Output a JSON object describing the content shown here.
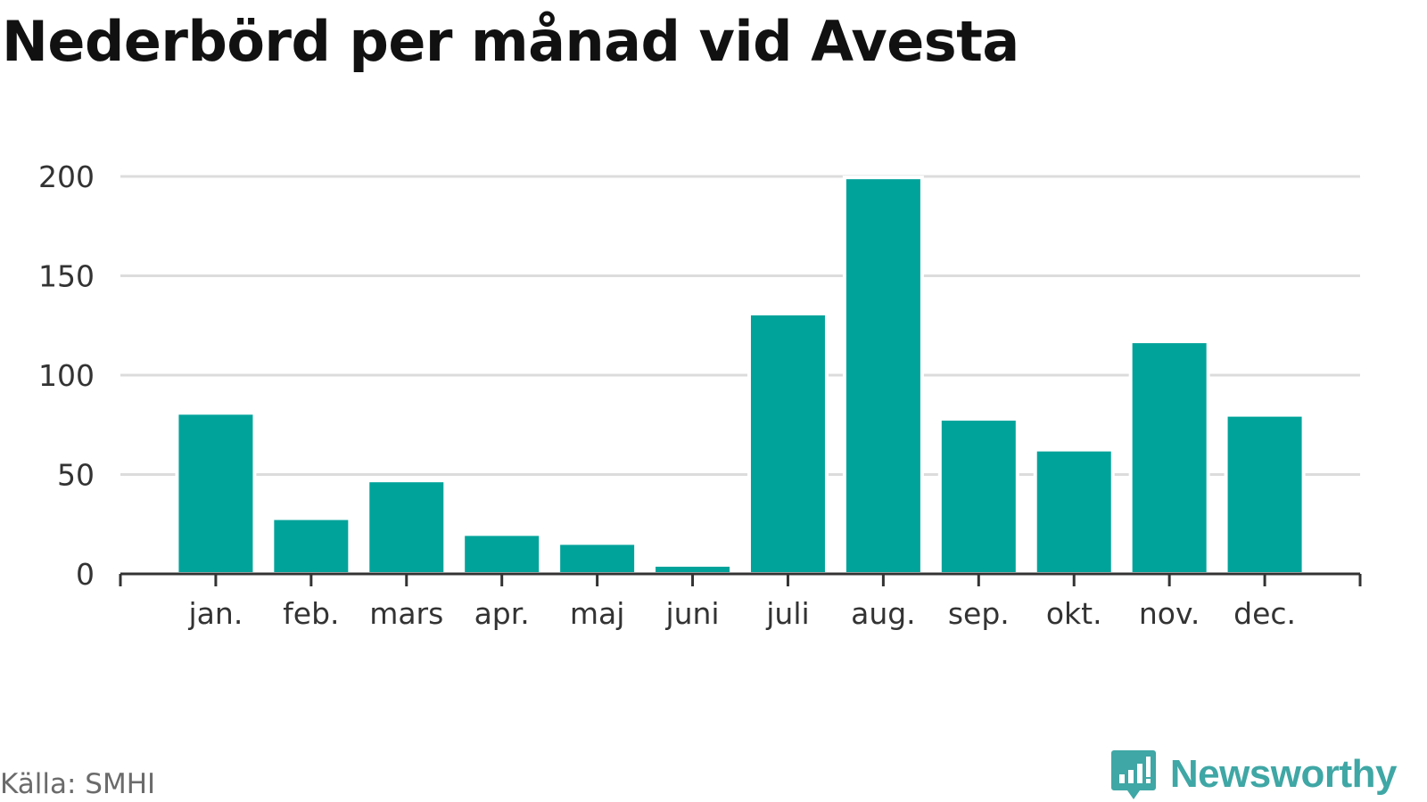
{
  "chart_data": {
    "type": "bar",
    "title": "Nederbörd per månad vid Avesta",
    "categories": [
      "jan.",
      "feb.",
      "mars",
      "apr.",
      "maj",
      "juni",
      "juli",
      "aug.",
      "sep.",
      "okt.",
      "nov.",
      "dec."
    ],
    "values": [
      81,
      28,
      47,
      20,
      15.5,
      4.5,
      131,
      199.5,
      78,
      62.5,
      117,
      80
    ],
    "ylim": [
      0,
      200
    ],
    "yticks": [
      "0",
      "50",
      "100",
      "150",
      "200"
    ],
    "grid": true,
    "bar_color": "#00a39a",
    "xlabel": "",
    "ylabel": ""
  },
  "footer": {
    "source": "Källa: SMHI",
    "brand": "Newsworthy",
    "brand_color": "#3fa7a5",
    "brand_icon": "newsworthy-logo-icon"
  }
}
